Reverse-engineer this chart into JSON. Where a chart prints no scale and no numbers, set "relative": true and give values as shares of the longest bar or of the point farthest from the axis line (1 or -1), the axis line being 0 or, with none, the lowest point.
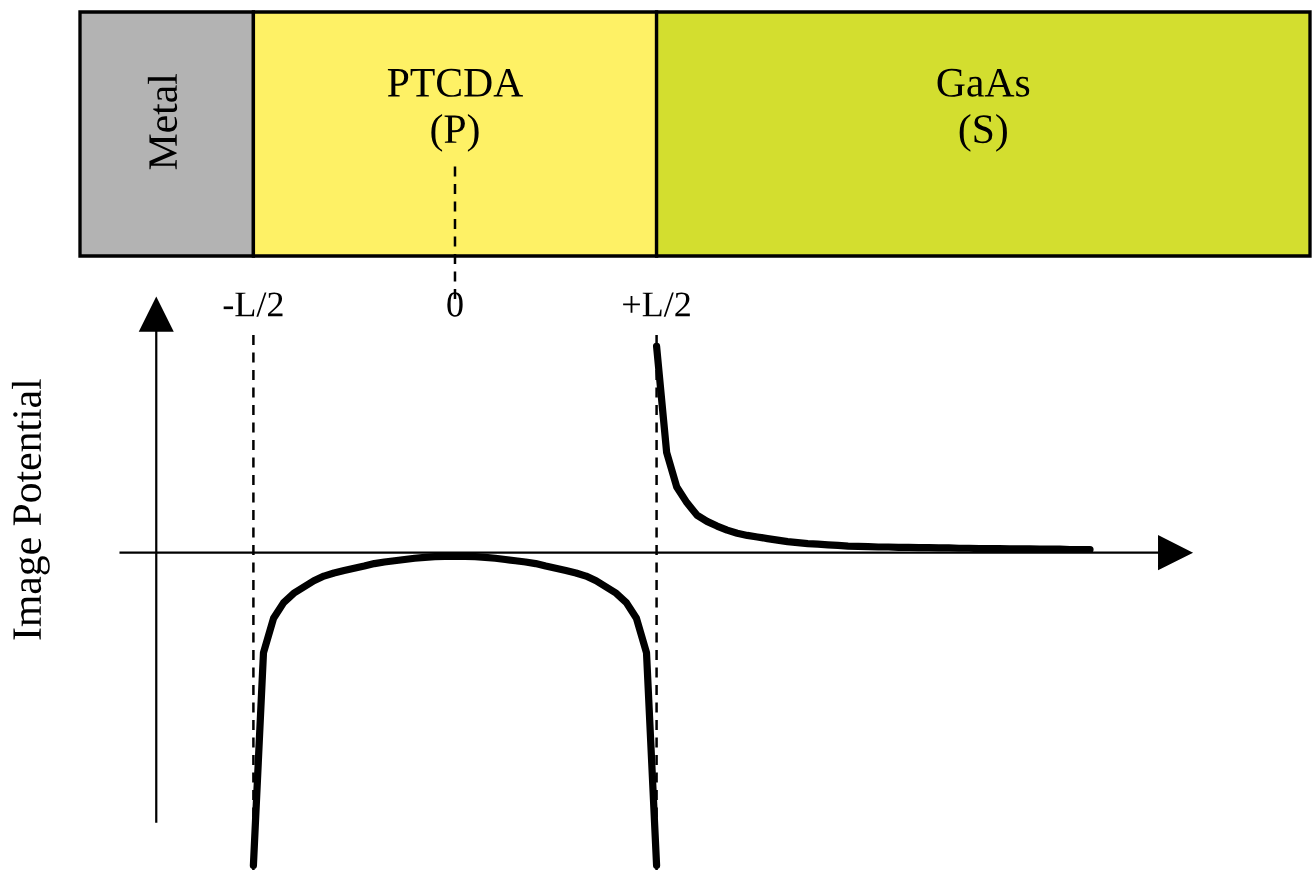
{
  "chart_data": {
    "type": "line",
    "relative": true,
    "ylabel": "Image Potential",
    "categories": [
      "-L/2",
      null,
      null,
      null,
      null,
      null,
      null,
      null,
      null,
      null,
      null,
      null,
      null,
      null,
      null,
      null,
      null,
      null,
      null,
      null,
      "0",
      null,
      null,
      null,
      null,
      null,
      null,
      null,
      null,
      null,
      null,
      null,
      null,
      null,
      null,
      null,
      null,
      null,
      null,
      null,
      "+L/2",
      null,
      null,
      null,
      null,
      null,
      null,
      null,
      null,
      null,
      null,
      null,
      null,
      null,
      null,
      null,
      null,
      null,
      null,
      null,
      null,
      null,
      null,
      null,
      null,
      null,
      null,
      null,
      null,
      null,
      null,
      null,
      null,
      null,
      null,
      null,
      null,
      null,
      null,
      null,
      null,
      null,
      null,
      null
    ],
    "series": [
      {
        "color": "#000000",
        "values": [
          -1,
          -0.32,
          -0.21,
          -0.16,
          -0.13,
          -0.11,
          -0.09,
          -0.075,
          -0.065,
          -0.057,
          -0.05,
          -0.043,
          -0.035,
          -0.03,
          -0.026,
          -0.022,
          -0.018,
          -0.015,
          -0.013,
          -0.012,
          -0.011,
          -0.012,
          -0.013,
          -0.015,
          -0.018,
          -0.022,
          -0.026,
          -0.03,
          -0.035,
          -0.043,
          -0.05,
          -0.057,
          -0.065,
          -0.075,
          -0.09,
          -0.11,
          -0.13,
          -0.16,
          -0.21,
          -0.32,
          -1,
          null,
          null,
          null,
          null,
          null,
          null,
          null,
          null,
          null,
          null,
          null,
          null,
          null,
          null,
          null,
          null,
          null,
          null,
          null,
          null,
          null,
          null,
          null,
          null,
          null,
          null,
          null,
          null,
          null,
          null,
          null,
          null,
          null,
          null,
          null,
          null,
          null,
          null,
          null,
          null,
          null,
          null,
          null
        ]
      },
      {
        "color": "#000000",
        "values": [
          null,
          null,
          null,
          null,
          null,
          null,
          null,
          null,
          null,
          null,
          null,
          null,
          null,
          null,
          null,
          null,
          null,
          null,
          null,
          null,
          null,
          null,
          null,
          null,
          null,
          null,
          null,
          null,
          null,
          null,
          null,
          null,
          null,
          null,
          null,
          null,
          null,
          null,
          null,
          null,
          0.66,
          0.32,
          0.21,
          0.16,
          0.12,
          0.1,
          0.085,
          0.072,
          0.062,
          0.055,
          0.05,
          0.045,
          0.04,
          0.035,
          0.032,
          0.029,
          0.027,
          0.025,
          0.023,
          0.021,
          0.02,
          0.019,
          0.018,
          0.018,
          0.017,
          0.017,
          0.016,
          0.016,
          0.015,
          0.015,
          0.014,
          0.014,
          0.013,
          0.013,
          0.013,
          0.012,
          0.012,
          0.012,
          0.011,
          0.011,
          0.011,
          0.01,
          0.01,
          0.01
        ]
      }
    ],
    "ref_lines": [
      {
        "axis": "x",
        "value": "-L/2",
        "line_style": "dashed"
      },
      {
        "axis": "x",
        "value": "+L/2",
        "line_style": "dashed"
      }
    ],
    "annotations": [
      "Metal",
      "PTCDA\n(P)",
      "GaAs\n(S)"
    ],
    "marker": "none",
    "line_style": "solid"
  }
}
